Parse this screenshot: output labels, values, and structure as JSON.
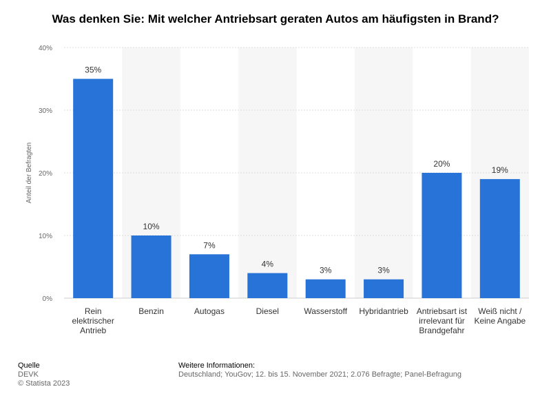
{
  "page": {
    "title": "Was denken Sie: Mit welcher Antriebsart geraten Autos am häufigsten in Brand?"
  },
  "chart_data": {
    "type": "bar",
    "title": "Was denken Sie: Mit welcher Antriebsart geraten Autos am häufigsten in Brand?",
    "xlabel": "",
    "ylabel": "Anteil der Befragten",
    "ylim": [
      0,
      40
    ],
    "yticks": [
      0,
      10,
      20,
      30,
      40
    ],
    "ytick_labels": [
      "0%",
      "10%",
      "20%",
      "30%",
      "40%"
    ],
    "grid": true,
    "value_suffix": "%",
    "categories": [
      "Rein elektrischer Antrieb",
      "Benzin",
      "Autogas",
      "Diesel",
      "Wasserstoff",
      "Hybridantrieb",
      "Antriebsart ist irrelevant für Brandgefahr",
      "Weiß nicht / Keine Angabe"
    ],
    "category_lines": [
      [
        "Rein",
        "elektrischer",
        "Antrieb"
      ],
      [
        "Benzin"
      ],
      [
        "Autogas"
      ],
      [
        "Diesel"
      ],
      [
        "Wasserstoff"
      ],
      [
        "Hybridantrieb"
      ],
      [
        "Antriebsart ist",
        "irrelevant für",
        "Brandgefahr"
      ],
      [
        "Weiß nicht /",
        "Keine Angabe"
      ]
    ],
    "values": [
      35,
      10,
      7,
      4,
      3,
      3,
      20,
      19
    ],
    "bar_color": "#2873d8"
  },
  "footer": {
    "source_label": "Quelle",
    "source_name": "DEVK",
    "copyright": "© Statista 2023",
    "info_label": "Weitere Informationen:",
    "info_text": "Deutschland; YouGov; 12. bis 15. November 2021; 2.076 Befragte; Panel-Befragung"
  }
}
